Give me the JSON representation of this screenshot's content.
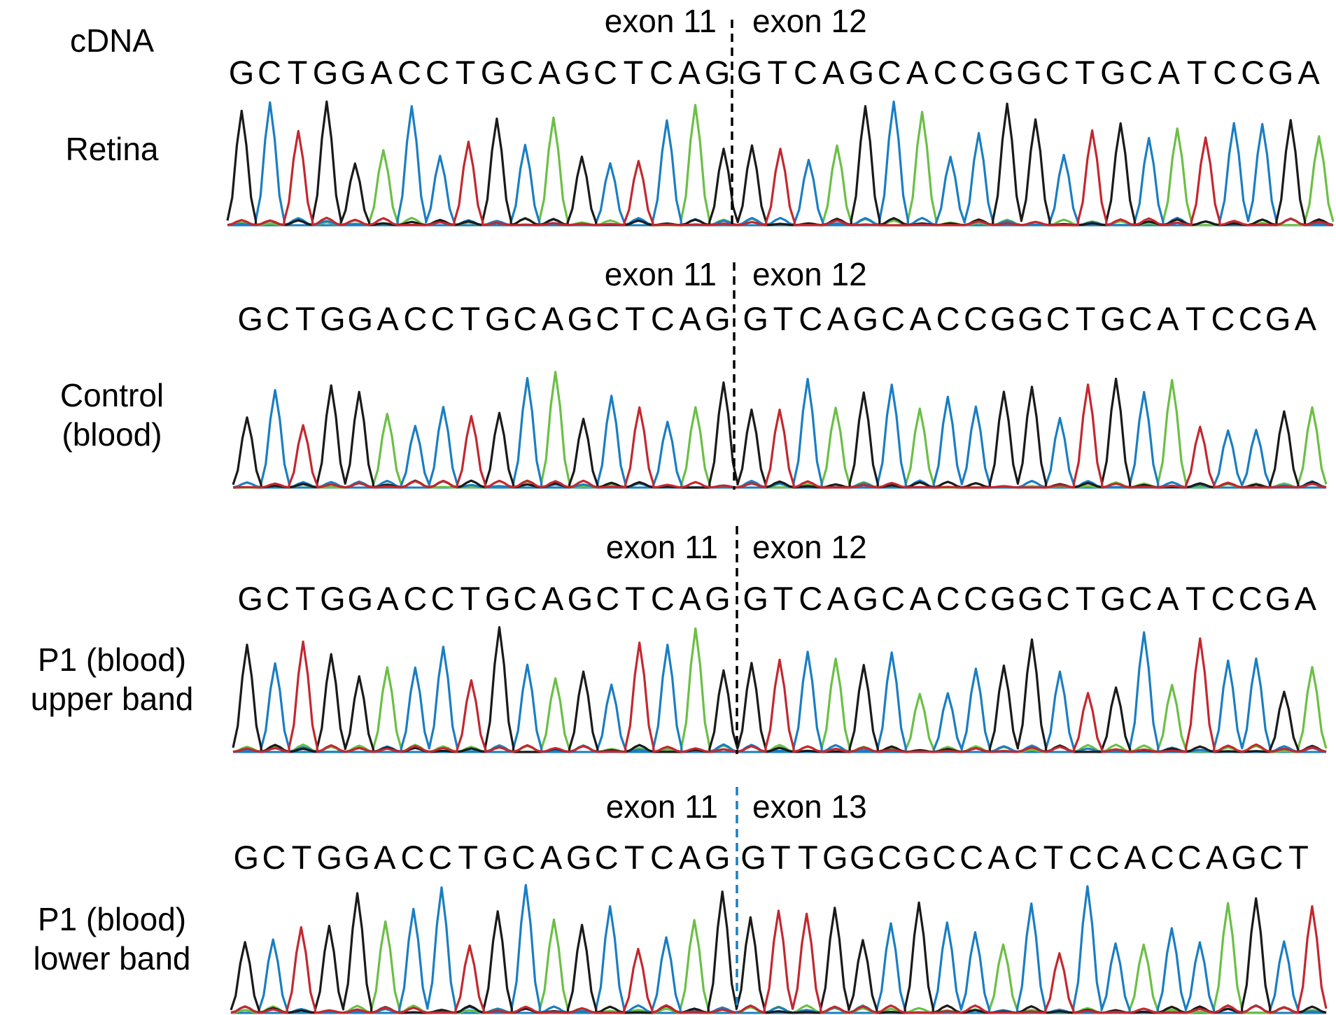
{
  "colors": {
    "A": "#6bbf45",
    "C": "#1a7ec2",
    "G": "#1a1a1a",
    "T": "#c3282f",
    "divider_default": "#000000",
    "divider_alt": "#1a7ec2"
  },
  "panels": [
    {
      "label_lines": [
        "Retina"
      ],
      "header_label": "cDNA",
      "exon_left": "exon 11",
      "exon_right": "exon 12",
      "seq_left": "GCTGGACCTGCAGCTCAG",
      "seq_right": "GTCAGCACCGGCTGCATCCGA",
      "divider_color": "divider_default"
    },
    {
      "label_lines": [
        "Control",
        "(blood)"
      ],
      "exon_left": "exon 11",
      "exon_right": "exon 12",
      "seq_left": "GCTGGACCTGCAGCTCAG",
      "seq_right": "GTCAGCACCGGCTGCATCCGA",
      "divider_color": "divider_default"
    },
    {
      "label_lines": [
        "P1 (blood)",
        "upper band"
      ],
      "exon_left": "exon 11",
      "exon_right": "exon 12",
      "seq_left": "GCTGGACCTGCAGCTCAG",
      "seq_right": "GTCAGCACCGGCTGCATCCGA",
      "divider_color": "divider_default"
    },
    {
      "label_lines": [
        "P1 (blood)",
        "lower band"
      ],
      "exon_left": "exon 11",
      "exon_right": "exon 13",
      "seq_left": "GCTGGACCTGCAGCTCAG",
      "seq_right": "GTTGGCGCCACTCCACCAGCT",
      "divider_color": "divider_alt"
    }
  ]
}
